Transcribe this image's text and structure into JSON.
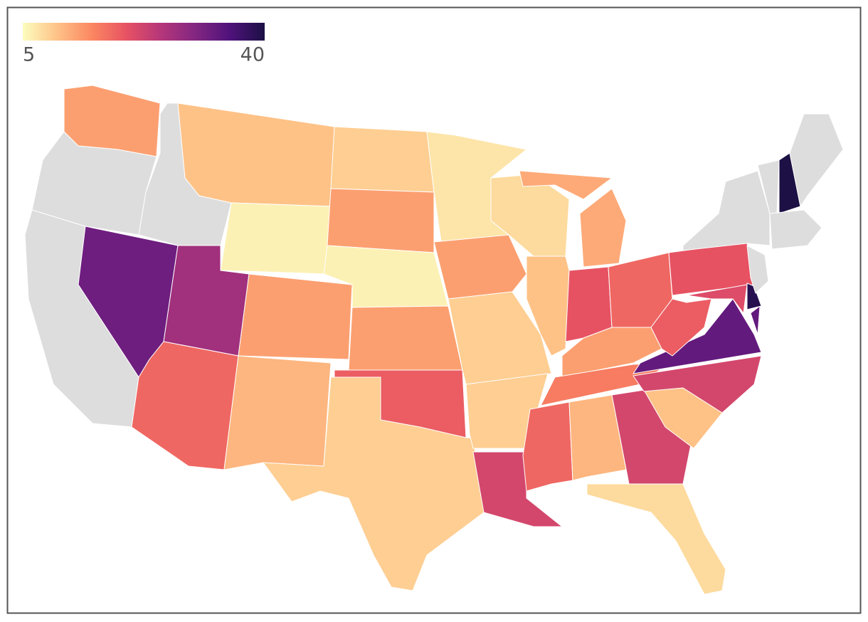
{
  "chart_data": {
    "type": "choropleth",
    "colorscale": [
      "#fcfdbf",
      "#fec287",
      "#fb8761",
      "#e75263",
      "#b5367a",
      "#822681",
      "#4f127b",
      "#1c1044"
    ],
    "null_color": "#dddddd",
    "zlim": [
      5,
      40
    ],
    "zticks": [
      5,
      40
    ],
    "values": [
      13,
      null,
      null,
      null,
      32,
      10,
      6,
      27,
      18,
      13,
      11,
      9,
      13,
      6,
      13,
      19,
      9,
      7,
      13,
      9,
      9,
      22,
      8,
      10,
      12,
      20,
      18,
      13,
      16,
      18,
      11,
      22,
      8,
      10,
      22,
      33,
      19,
      20,
      21,
      39,
      null,
      null,
      null,
      40,
      null,
      null
    ]
  }
}
